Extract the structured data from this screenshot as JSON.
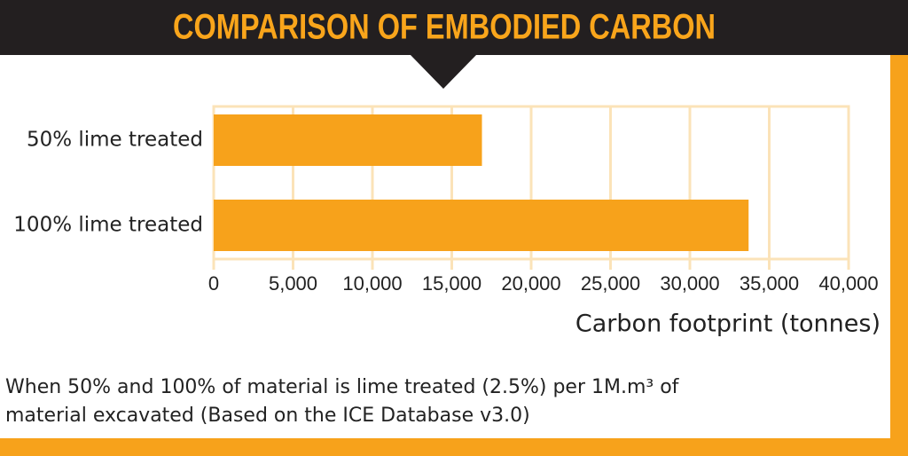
{
  "chart_data": {
    "type": "bar",
    "orientation": "horizontal",
    "title": "COMPARISON OF EMBODIED CARBON",
    "categories": [
      "50% lime treated",
      "100% lime treated"
    ],
    "values": [
      16900,
      33700
    ],
    "color": "#f7a21b",
    "xlim": [
      0,
      40000
    ],
    "xticks": [
      0,
      {
        "value": 5000,
        "label": "5,000"
      },
      {
        "value": 10000,
        "label": "10,000"
      },
      {
        "value": 15000,
        "label": "15,000"
      },
      {
        "value": 20000,
        "label": "20,000"
      },
      {
        "value": 25000,
        "label": "25,000"
      },
      {
        "value": 30000,
        "label": "30,000"
      },
      {
        "value": 35000,
        "label": "35,000"
      },
      {
        "value": 40000,
        "label": "40,000"
      }
    ],
    "xlabel": "Carbon footprint (tonnes)",
    "grid": true,
    "footnote": [
      "When 50% and 100% of material is lime treated (2.5%) per 1M.m³ of",
      "material excavated (Based on the ICE Database v3.0)"
    ]
  }
}
